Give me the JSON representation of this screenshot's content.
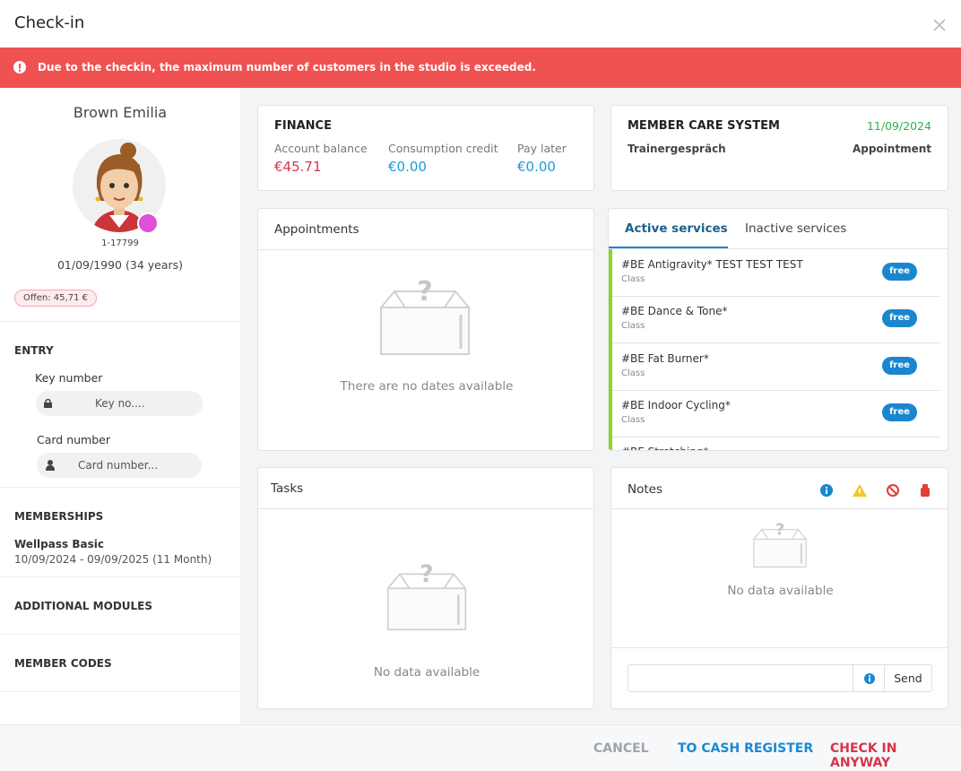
{
  "header": {
    "title": "Check-in"
  },
  "alert": {
    "message": "Due to the checkin, the maximum number of customers in the studio is exceeded."
  },
  "member": {
    "name": "Brown Emilia",
    "id": "1-17799",
    "birth": "01/09/1990 (34 years)",
    "badge": "Offen: 45,71 €"
  },
  "entry": {
    "title": "ENTRY",
    "key_label": "Key number",
    "key_placeholder": "Key no....",
    "card_label": "Card number",
    "card_placeholder": "Card number..."
  },
  "memberships": {
    "title": "MEMBERSHIPS",
    "name": "Wellpass Basic",
    "period": "10/09/2024 - 09/09/2025 (11 Month)"
  },
  "additional_modules": {
    "title": "ADDITIONAL MODULES"
  },
  "member_codes": {
    "title": "MEMBER CODES"
  },
  "finance": {
    "title": "FINANCE",
    "items": [
      {
        "label": "Account balance",
        "value": "€45.71"
      },
      {
        "label": "Consumption credit",
        "value": "€0.00"
      },
      {
        "label": "Pay later",
        "value": "€0.00"
      }
    ]
  },
  "member_care": {
    "title": "MEMBER CARE SYSTEM",
    "date": "11/09/2024",
    "topic": "Trainergespräch",
    "type": "Appointment"
  },
  "appointments": {
    "title": "Appointments",
    "empty": "There are no dates available"
  },
  "services": {
    "tabs": [
      "Active services",
      "Inactive services"
    ],
    "items": [
      {
        "name": "#BE Antigravity* TEST TEST TEST",
        "category": "Class",
        "badge": "free"
      },
      {
        "name": "#BE Dance & Tone*",
        "category": "Class",
        "badge": "free"
      },
      {
        "name": "#BE Fat Burner*",
        "category": "Class",
        "badge": "free"
      },
      {
        "name": "#BE Indoor Cycling*",
        "category": "Class",
        "badge": "free"
      },
      {
        "name": "#BE Stretching*"
      }
    ]
  },
  "tasks": {
    "title": "Tasks",
    "empty": "No data available"
  },
  "notes": {
    "title": "Notes",
    "empty": "No data available",
    "send": "Send"
  },
  "footer": {
    "buttons": [
      "CANCEL",
      "TO CASH REGISTER",
      "CHECK IN ANYWAY"
    ]
  }
}
